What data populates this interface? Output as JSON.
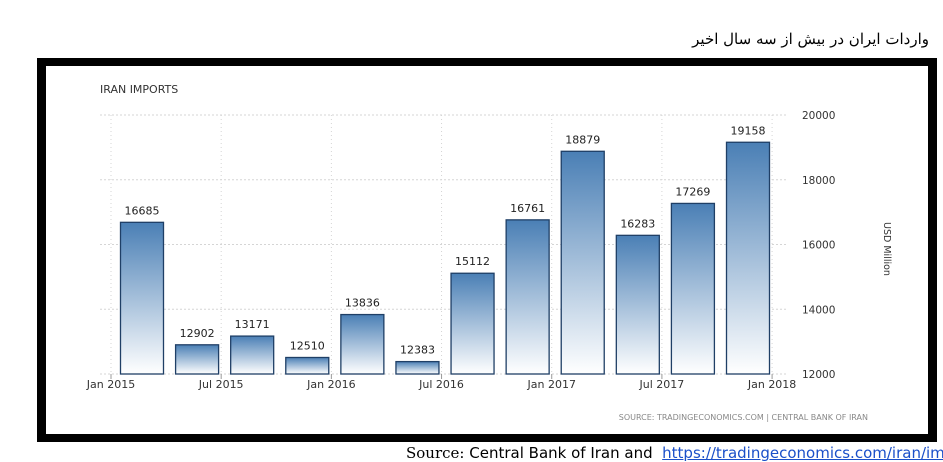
{
  "heading": "واردات ایران در بیش از سه سال اخیر",
  "footer": {
    "source_word": "Source:",
    "source_text": "Central Bank of Iran and",
    "link_text": "https://tradingeconomics.com/iran/imports"
  },
  "chart_data": {
    "type": "bar",
    "title": "IRAN IMPORTS",
    "ylabel": "USD Million",
    "ylim": [
      12000,
      20000
    ],
    "yticks": [
      "12000",
      "14000",
      "16000",
      "18000",
      "20000"
    ],
    "x_tick_labels": [
      "Jan 2015",
      "Jul 2015",
      "Jan 2016",
      "Jul 2016",
      "Jan 2017",
      "Jul 2017",
      "Jan 2018"
    ],
    "values": [
      16685,
      12902,
      13171,
      12510,
      13836,
      12383,
      15112,
      16761,
      18879,
      16283,
      17269,
      19158
    ],
    "grid": true,
    "credit": "SOURCE: TRADINGECONOMICS.COM | CENTRAL BANK OF IRAN",
    "colors": {
      "bar_top": "#4a7fb5",
      "bar_bottom": "#ffffff",
      "bar_stroke": "#1f3f66",
      "grid": "#d5d5d5"
    }
  }
}
